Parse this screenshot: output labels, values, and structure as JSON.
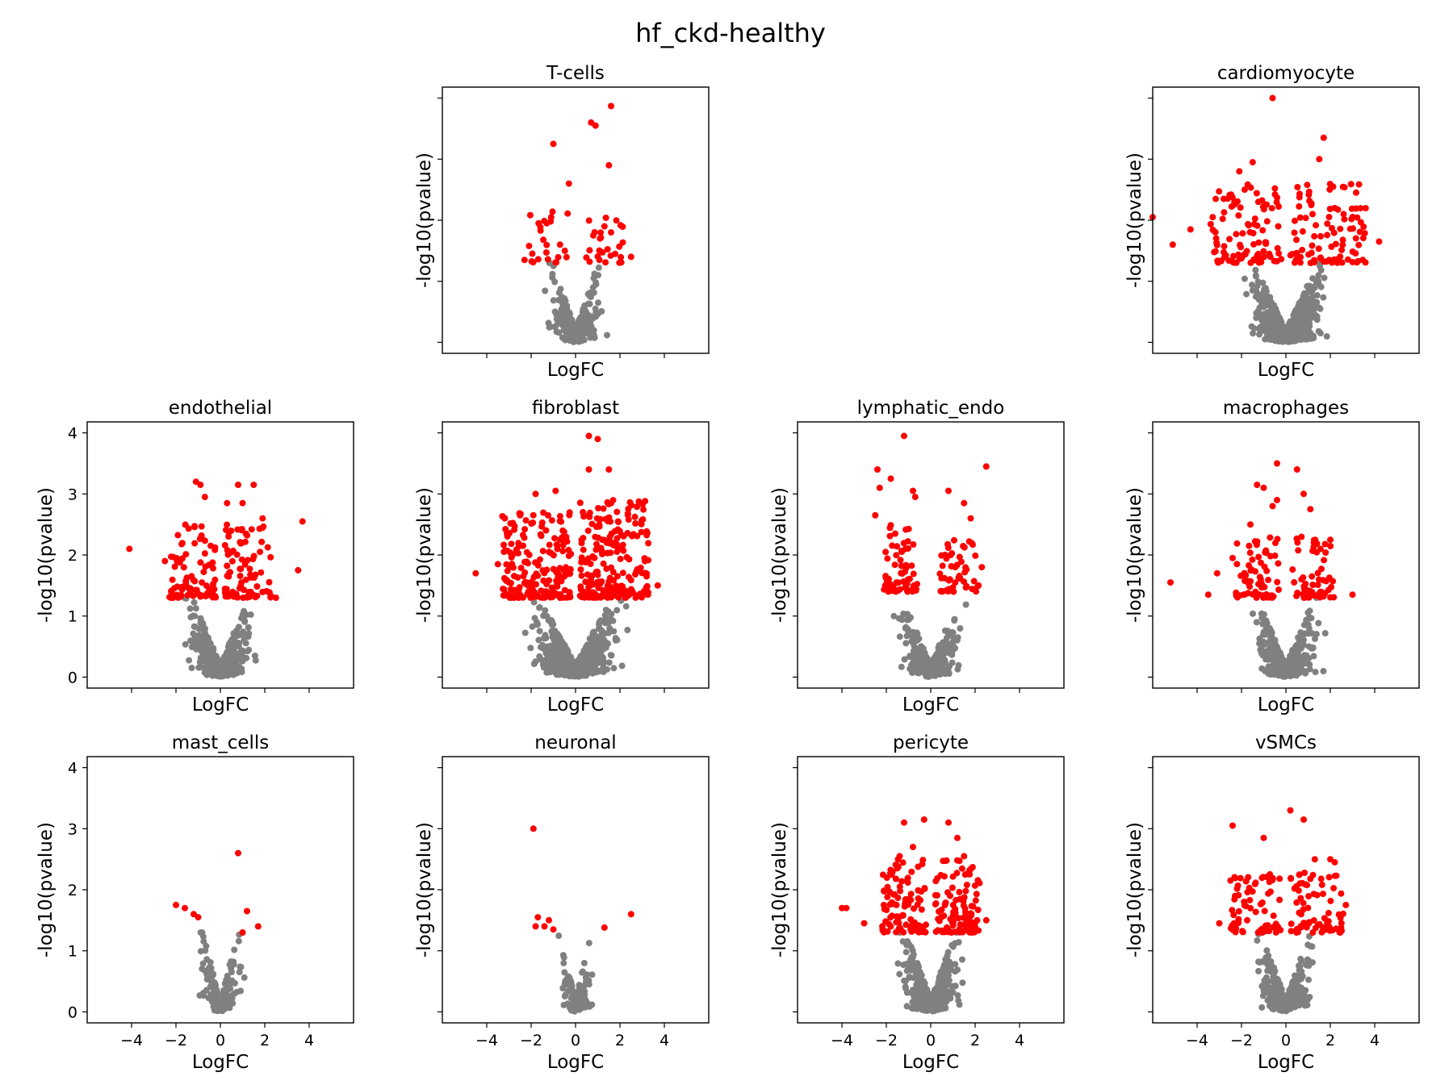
{
  "suptitle": "hf_ckd-healthy",
  "colors": {
    "significant": "#ff0000",
    "nonsignificant": "#808080"
  },
  "chart_data": [
    {
      "type": "scatter",
      "title": "T-cells",
      "xlabel": "LogFC",
      "ylabel": "-log10(pvalue)",
      "xlim": [
        -6,
        6
      ],
      "ylim": [
        -0.18,
        4.18
      ],
      "significance_threshold_y": 1.3,
      "grid": false,
      "x_tick_labels_shown": false,
      "y_tick_labels_shown": false,
      "highlighted_points": [
        [
          1.6,
          3.87
        ],
        [
          0.7,
          3.6
        ],
        [
          0.9,
          3.55
        ],
        [
          -1,
          3.25
        ],
        [
          1.5,
          2.9
        ],
        [
          -0.3,
          2.6
        ],
        [
          -1.1,
          2.05
        ],
        [
          -1.3,
          1.95
        ],
        [
          1.3,
          1.9
        ],
        [
          1.6,
          1.8
        ],
        [
          0.8,
          1.75
        ],
        [
          1.1,
          1.7
        ],
        [
          -0.7,
          1.6
        ],
        [
          -2.3,
          1.35
        ],
        [
          2.5,
          1.4
        ]
      ],
      "highlight_spread": [
        [
          -2.1,
          -0.3,
          1.3,
          2.2,
          22
        ],
        [
          0.3,
          2.2,
          1.3,
          2.2,
          24
        ]
      ],
      "background_spread": [
        [
          -2.8,
          2.8,
          0,
          1.3,
          260
        ]
      ]
    },
    {
      "type": "scatter",
      "title": "cardiomyocyte",
      "xlabel": "LogFC",
      "ylabel": "-log10(pvalue)",
      "xlim": [
        -6,
        6
      ],
      "ylim": [
        -0.18,
        4.18
      ],
      "significance_threshold_y": 1.3,
      "grid": false,
      "x_tick_labels_shown": false,
      "y_tick_labels_shown": false,
      "highlighted_points": [
        [
          -0.6,
          4.0
        ],
        [
          1.7,
          3.35
        ],
        [
          1.5,
          3.0
        ],
        [
          -2.1,
          2.8
        ],
        [
          -2.8,
          2.35
        ],
        [
          -3.3,
          2.05
        ],
        [
          -1.5,
          2.95
        ],
        [
          2.2,
          2.2
        ],
        [
          2.6,
          2.1
        ],
        [
          -4.3,
          1.85
        ],
        [
          4.2,
          1.65
        ],
        [
          -5.1,
          1.6
        ],
        [
          -6,
          2.05
        ]
      ],
      "highlight_spread": [
        [
          -3.4,
          -0.2,
          1.3,
          2.6,
          95
        ],
        [
          0.2,
          3.6,
          1.3,
          2.6,
          95
        ]
      ],
      "background_spread": [
        [
          -4.0,
          4.0,
          0,
          1.3,
          520
        ]
      ]
    },
    {
      "type": "scatter",
      "title": "endothelial",
      "xlabel": "LogFC",
      "ylabel": "-log10(pvalue)",
      "xlim": [
        -6,
        6
      ],
      "ylim": [
        -0.18,
        4.18
      ],
      "significance_threshold_y": 1.3,
      "grid": false,
      "x_tick_labels_shown": false,
      "y_tick_labels_shown": true,
      "highlighted_points": [
        [
          -1.1,
          3.2
        ],
        [
          -0.9,
          3.15
        ],
        [
          0.8,
          3.15
        ],
        [
          1.5,
          3.15
        ],
        [
          -0.7,
          2.95
        ],
        [
          0.3,
          2.85
        ],
        [
          1.0,
          2.85
        ],
        [
          1.9,
          2.6
        ],
        [
          3.7,
          2.55
        ],
        [
          -4.1,
          2.1
        ],
        [
          3.5,
          1.75
        ],
        [
          -2.5,
          1.9
        ],
        [
          2.5,
          1.3
        ]
      ],
      "highlight_spread": [
        [
          -2.3,
          -0.2,
          1.3,
          2.5,
          85
        ],
        [
          0.2,
          2.3,
          1.3,
          2.5,
          85
        ]
      ],
      "background_spread": [
        [
          -3.5,
          3.5,
          0,
          1.3,
          420
        ]
      ]
    },
    {
      "type": "scatter",
      "title": "fibroblast",
      "xlabel": "LogFC",
      "ylabel": "-log10(pvalue)",
      "xlim": [
        -6,
        6
      ],
      "ylim": [
        -0.18,
        4.18
      ],
      "significance_threshold_y": 1.3,
      "grid": false,
      "x_tick_labels_shown": false,
      "y_tick_labels_shown": false,
      "highlighted_points": [
        [
          0.6,
          3.95
        ],
        [
          1.0,
          3.9
        ],
        [
          0.6,
          3.4
        ],
        [
          1.5,
          3.4
        ],
        [
          -1.8,
          3.0
        ],
        [
          -0.9,
          3.05
        ],
        [
          1.6,
          2.85
        ],
        [
          -2.5,
          2.65
        ],
        [
          -4.5,
          1.7
        ],
        [
          -3.5,
          1.85
        ],
        [
          3.7,
          1.5
        ],
        [
          3.2,
          1.65
        ],
        [
          -3.0,
          1.55
        ]
      ],
      "highlight_spread": [
        [
          -3.3,
          -0.2,
          1.3,
          2.7,
          190
        ],
        [
          0.2,
          3.3,
          1.3,
          2.9,
          210
        ]
      ],
      "background_spread": [
        [
          -4.5,
          4.5,
          0,
          1.3,
          620
        ]
      ]
    },
    {
      "type": "scatter",
      "title": "lymphatic_endo",
      "xlabel": "LogFC",
      "ylabel": "-log10(pvalue)",
      "xlim": [
        -6,
        6
      ],
      "ylim": [
        -0.18,
        4.18
      ],
      "significance_threshold_y": 1.3,
      "grid": false,
      "x_tick_labels_shown": false,
      "y_tick_labels_shown": false,
      "highlighted_points": [
        [
          -1.2,
          3.95
        ],
        [
          -2.4,
          3.4
        ],
        [
          -1.8,
          3.25
        ],
        [
          -2.3,
          3.1
        ],
        [
          -0.8,
          3.05
        ],
        [
          -0.7,
          2.95
        ],
        [
          0.8,
          3.05
        ],
        [
          2.5,
          3.45
        ],
        [
          1.5,
          2.85
        ],
        [
          -2.5,
          2.65
        ],
        [
          1.8,
          2.6
        ],
        [
          2.3,
          1.8
        ],
        [
          -1.6,
          2.35
        ],
        [
          0.9,
          2.0
        ]
      ],
      "highlight_spread": [
        [
          -2.2,
          -0.6,
          1.4,
          2.5,
          60
        ],
        [
          0.4,
          2.2,
          1.4,
          2.3,
          50
        ]
      ],
      "background_spread": [
        [
          -3.0,
          3.5,
          0,
          1.3,
          280
        ]
      ]
    },
    {
      "type": "scatter",
      "title": "macrophages",
      "xlabel": "LogFC",
      "ylabel": "-log10(pvalue)",
      "xlim": [
        -6,
        6
      ],
      "ylim": [
        -0.18,
        4.18
      ],
      "significance_threshold_y": 1.3,
      "grid": false,
      "x_tick_labels_shown": false,
      "y_tick_labels_shown": false,
      "highlighted_points": [
        [
          -0.4,
          3.5
        ],
        [
          0.5,
          3.4
        ],
        [
          -1.3,
          3.15
        ],
        [
          -1.0,
          3.1
        ],
        [
          0.8,
          3.0
        ],
        [
          -0.4,
          2.9
        ],
        [
          -0.6,
          2.8
        ],
        [
          1.1,
          2.75
        ],
        [
          -1.6,
          2.5
        ],
        [
          2.0,
          2.25
        ],
        [
          -2.4,
          1.95
        ],
        [
          -3.1,
          1.7
        ],
        [
          -5.2,
          1.55
        ],
        [
          3.0,
          1.35
        ],
        [
          -3.5,
          1.35
        ]
      ],
      "highlight_spread": [
        [
          -2.3,
          -0.3,
          1.3,
          2.3,
          65
        ],
        [
          0.3,
          2.2,
          1.3,
          2.3,
          60
        ]
      ],
      "background_spread": [
        [
          -3.5,
          3.5,
          0,
          1.3,
          360
        ]
      ]
    },
    {
      "type": "scatter",
      "title": "mast_cells",
      "xlabel": "LogFC",
      "ylabel": "-log10(pvalue)",
      "xlim": [
        -6,
        6
      ],
      "ylim": [
        -0.18,
        4.18
      ],
      "significance_threshold_y": 1.3,
      "grid": false,
      "x_tick_labels_shown": true,
      "y_tick_labels_shown": true,
      "highlighted_points": [
        [
          0.8,
          2.6
        ],
        [
          -2.0,
          1.75
        ],
        [
          -1.6,
          1.7
        ],
        [
          -1.2,
          1.6
        ],
        [
          -1.0,
          1.55
        ],
        [
          1.2,
          1.65
        ],
        [
          1.7,
          1.4
        ],
        [
          1.0,
          1.3
        ]
      ],
      "highlight_spread": [],
      "background_spread": [
        [
          -2.2,
          2.0,
          0,
          1.3,
          150
        ]
      ]
    },
    {
      "type": "scatter",
      "title": "neuronal",
      "xlabel": "LogFC",
      "ylabel": "-log10(pvalue)",
      "xlim": [
        -6,
        6
      ],
      "ylim": [
        -0.18,
        4.18
      ],
      "significance_threshold_y": 1.3,
      "grid": false,
      "x_tick_labels_shown": true,
      "y_tick_labels_shown": false,
      "highlighted_points": [
        [
          -1.9,
          3.0
        ],
        [
          -1.7,
          1.55
        ],
        [
          -1.2,
          1.5
        ],
        [
          -1.8,
          1.4
        ],
        [
          -1.4,
          1.4
        ],
        [
          -1.0,
          1.35
        ],
        [
          2.5,
          1.6
        ],
        [
          1.3,
          1.38
        ]
      ],
      "highlight_spread": [],
      "background_spread": [
        [
          -1.8,
          1.8,
          0,
          1.3,
          110
        ]
      ]
    },
    {
      "type": "scatter",
      "title": "pericyte",
      "xlabel": "LogFC",
      "ylabel": "-log10(pvalue)",
      "xlim": [
        -6,
        6
      ],
      "ylim": [
        -0.18,
        4.18
      ],
      "significance_threshold_y": 1.3,
      "grid": false,
      "x_tick_labels_shown": true,
      "y_tick_labels_shown": false,
      "highlighted_points": [
        [
          -1.2,
          3.1
        ],
        [
          -0.3,
          3.15
        ],
        [
          0.8,
          3.1
        ],
        [
          1.2,
          2.85
        ],
        [
          -0.8,
          2.7
        ],
        [
          1.5,
          2.55
        ],
        [
          -1.4,
          2.55
        ],
        [
          -4.0,
          1.7
        ],
        [
          -3.8,
          1.7
        ],
        [
          2.5,
          1.5
        ],
        [
          -3.0,
          1.45
        ]
      ],
      "highlight_spread": [
        [
          -2.2,
          -0.2,
          1.3,
          2.5,
          100
        ],
        [
          0.2,
          2.2,
          1.3,
          2.5,
          105
        ]
      ],
      "background_spread": [
        [
          -3.0,
          3.0,
          0,
          1.3,
          440
        ]
      ]
    },
    {
      "type": "scatter",
      "title": "vSMCs",
      "xlabel": "LogFC",
      "ylabel": "-log10(pvalue)",
      "xlim": [
        -6,
        6
      ],
      "ylim": [
        -0.18,
        4.18
      ],
      "significance_threshold_y": 1.3,
      "grid": false,
      "x_tick_labels_shown": true,
      "y_tick_labels_shown": false,
      "highlighted_points": [
        [
          0.2,
          3.3
        ],
        [
          0.8,
          3.15
        ],
        [
          -2.4,
          3.05
        ],
        [
          -1.0,
          2.85
        ],
        [
          1.3,
          2.5
        ],
        [
          2.0,
          2.5
        ],
        [
          2.2,
          2.45
        ],
        [
          -2.5,
          2.15
        ],
        [
          2.7,
          1.75
        ],
        [
          -3.0,
          1.45
        ],
        [
          2.5,
          1.45
        ]
      ],
      "highlight_spread": [
        [
          -2.5,
          -0.2,
          1.3,
          2.3,
          70
        ],
        [
          0.2,
          2.6,
          1.3,
          2.3,
          70
        ]
      ],
      "background_spread": [
        [
          -3.0,
          3.0,
          0,
          1.3,
          300
        ]
      ]
    }
  ],
  "axis_ticks": {
    "x": [
      -4,
      -2,
      0,
      2,
      4
    ],
    "y": [
      0,
      1,
      2,
      3,
      4
    ]
  }
}
